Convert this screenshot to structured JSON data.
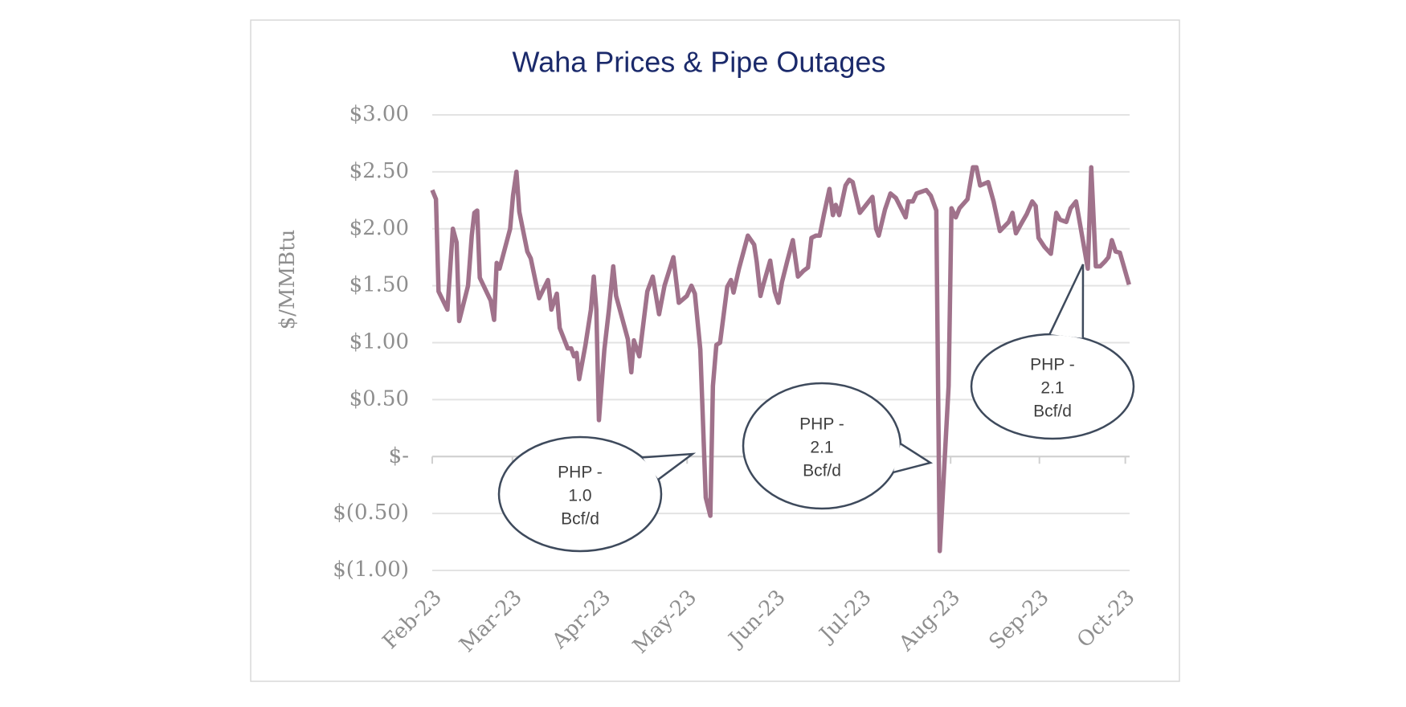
{
  "chart_data": {
    "type": "line",
    "title": "Waha Prices & Pipe Outages",
    "ylabel": "$/MMBtu",
    "xlim": [
      0,
      243.5
    ],
    "xticks": [
      {
        "value": 0,
        "label": "Feb-23"
      },
      {
        "value": 28,
        "label": "Mar-23"
      },
      {
        "value": 59,
        "label": "Apr-23"
      },
      {
        "value": 89,
        "label": "May-23"
      },
      {
        "value": 120,
        "label": "Jun-23"
      },
      {
        "value": 150,
        "label": "Jul-23"
      },
      {
        "value": 181,
        "label": "Aug-23"
      },
      {
        "value": 212,
        "label": "Sep-23"
      },
      {
        "value": 242,
        "label": "Oct-23"
      }
    ],
    "ylim": [
      -1,
      3
    ],
    "yticks": [
      {
        "value": 3,
        "label": "$3.00"
      },
      {
        "value": 2.5,
        "label": "$2.50"
      },
      {
        "value": 2,
        "label": "$2.00"
      },
      {
        "value": 1.5,
        "label": "$1.50"
      },
      {
        "value": 1,
        "label": "$1.00"
      },
      {
        "value": 0.5,
        "label": "$0.50"
      },
      {
        "value": 0,
        "label": "$-"
      },
      {
        "value": -0.5,
        "label": "$(0.50)"
      },
      {
        "value": -1,
        "label": "$(1.00)"
      }
    ],
    "grid": true,
    "color": "#a0728b",
    "x": [
      0,
      1.3,
      2.2,
      5.3,
      7.2,
      8.5,
      9.4,
      12.5,
      13.8,
      14.7,
      15.7,
      16.6,
      20.4,
      21.6,
      22.5,
      23.5,
      27.2,
      28.2,
      29.4,
      30.4,
      33.2,
      34.4,
      37.3,
      40.4,
      41.6,
      43.5,
      44.5,
      47.3,
      48.5,
      49.5,
      50.4,
      51.3,
      53.5,
      55.4,
      56.4,
      57.3,
      58.2,
      60.1,
      61.7,
      63.2,
      64.2,
      68.3,
      69.5,
      70.4,
      72.3,
      75.1,
      77,
      79.2,
      81.1,
      84.2,
      86.1,
      88.9,
      90.5,
      91.7,
      93.6,
      95.5,
      97.1,
      98,
      99.2,
      100.5,
      103,
      104.3,
      105.2,
      107.1,
      110.2,
      112.4,
      113.3,
      114.6,
      115.5,
      118,
      119.6,
      120.9,
      122.1,
      124,
      125.9,
      127.7,
      129.6,
      131.2,
      132.4,
      134,
      135.3,
      136.8,
      138.7,
      139.9,
      140.9,
      142.1,
      144.3,
      145.6,
      146.8,
      149.3,
      151.2,
      153.7,
      155,
      155.9,
      158.1,
      160,
      161.9,
      165.3,
      166.2,
      167.8,
      169.1,
      172.5,
      174.1,
      176,
      177.2,
      180.3,
      181.3,
      182.8,
      184.1,
      186.9,
      188.8,
      190,
      191.3,
      194.1,
      196,
      198.2,
      201.3,
      202.6,
      203.8,
      206,
      207.6,
      209.5,
      210.7,
      211.7,
      213.8,
      216,
      217.9,
      219.2,
      221.4,
      222.9,
      224.8,
      228.9,
      230.1,
      231.7,
      233.2,
      234.8,
      236.1,
      237.3,
      238.6,
      240.1,
      243.3
    ],
    "values": [
      2.34,
      2.26,
      1.45,
      1.29,
      2.0,
      1.88,
      1.19,
      1.5,
      1.94,
      2.14,
      2.16,
      1.57,
      1.37,
      1.2,
      1.7,
      1.65,
      2.0,
      2.29,
      2.5,
      2.15,
      1.8,
      1.74,
      1.39,
      1.55,
      1.29,
      1.43,
      1.13,
      0.95,
      0.95,
      0.88,
      0.91,
      0.68,
      0.98,
      1.29,
      1.58,
      1.29,
      0.32,
      0.94,
      1.29,
      1.67,
      1.41,
      1.03,
      0.74,
      1.02,
      0.88,
      1.45,
      1.58,
      1.25,
      1.5,
      1.75,
      1.35,
      1.41,
      1.5,
      1.43,
      0.94,
      -0.36,
      -0.52,
      0.62,
      0.98,
      1.0,
      1.49,
      1.55,
      1.44,
      1.65,
      1.94,
      1.86,
      1.71,
      1.41,
      1.5,
      1.72,
      1.45,
      1.35,
      1.53,
      1.72,
      1.9,
      1.58,
      1.63,
      1.66,
      1.92,
      1.94,
      1.94,
      2.13,
      2.35,
      2.12,
      2.21,
      2.12,
      2.38,
      2.43,
      2.41,
      2.14,
      2.2,
      2.28,
      2.0,
      1.94,
      2.17,
      2.31,
      2.27,
      2.1,
      2.24,
      2.24,
      2.31,
      2.34,
      2.29,
      2.16,
      -0.83,
      0.62,
      2.18,
      2.1,
      2.18,
      2.26,
      2.54,
      2.54,
      2.38,
      2.41,
      2.24,
      1.98,
      2.06,
      2.14,
      1.96,
      2.06,
      2.13,
      2.24,
      2.2,
      1.92,
      1.84,
      1.78,
      2.14,
      2.08,
      2.06,
      2.18,
      2.24,
      1.65,
      2.54,
      1.67,
      1.67,
      1.71,
      1.75,
      1.9,
      1.8,
      1.79,
      1.51
    ],
    "annotations": [
      {
        "lines": [
          "PHP -",
          "1.0",
          "Bcf/d"
        ]
      },
      {
        "lines": [
          "PHP -",
          "2.1",
          "Bcf/d"
        ]
      },
      {
        "lines": [
          "PHP -",
          "2.1",
          "Bcf/d"
        ]
      }
    ]
  }
}
